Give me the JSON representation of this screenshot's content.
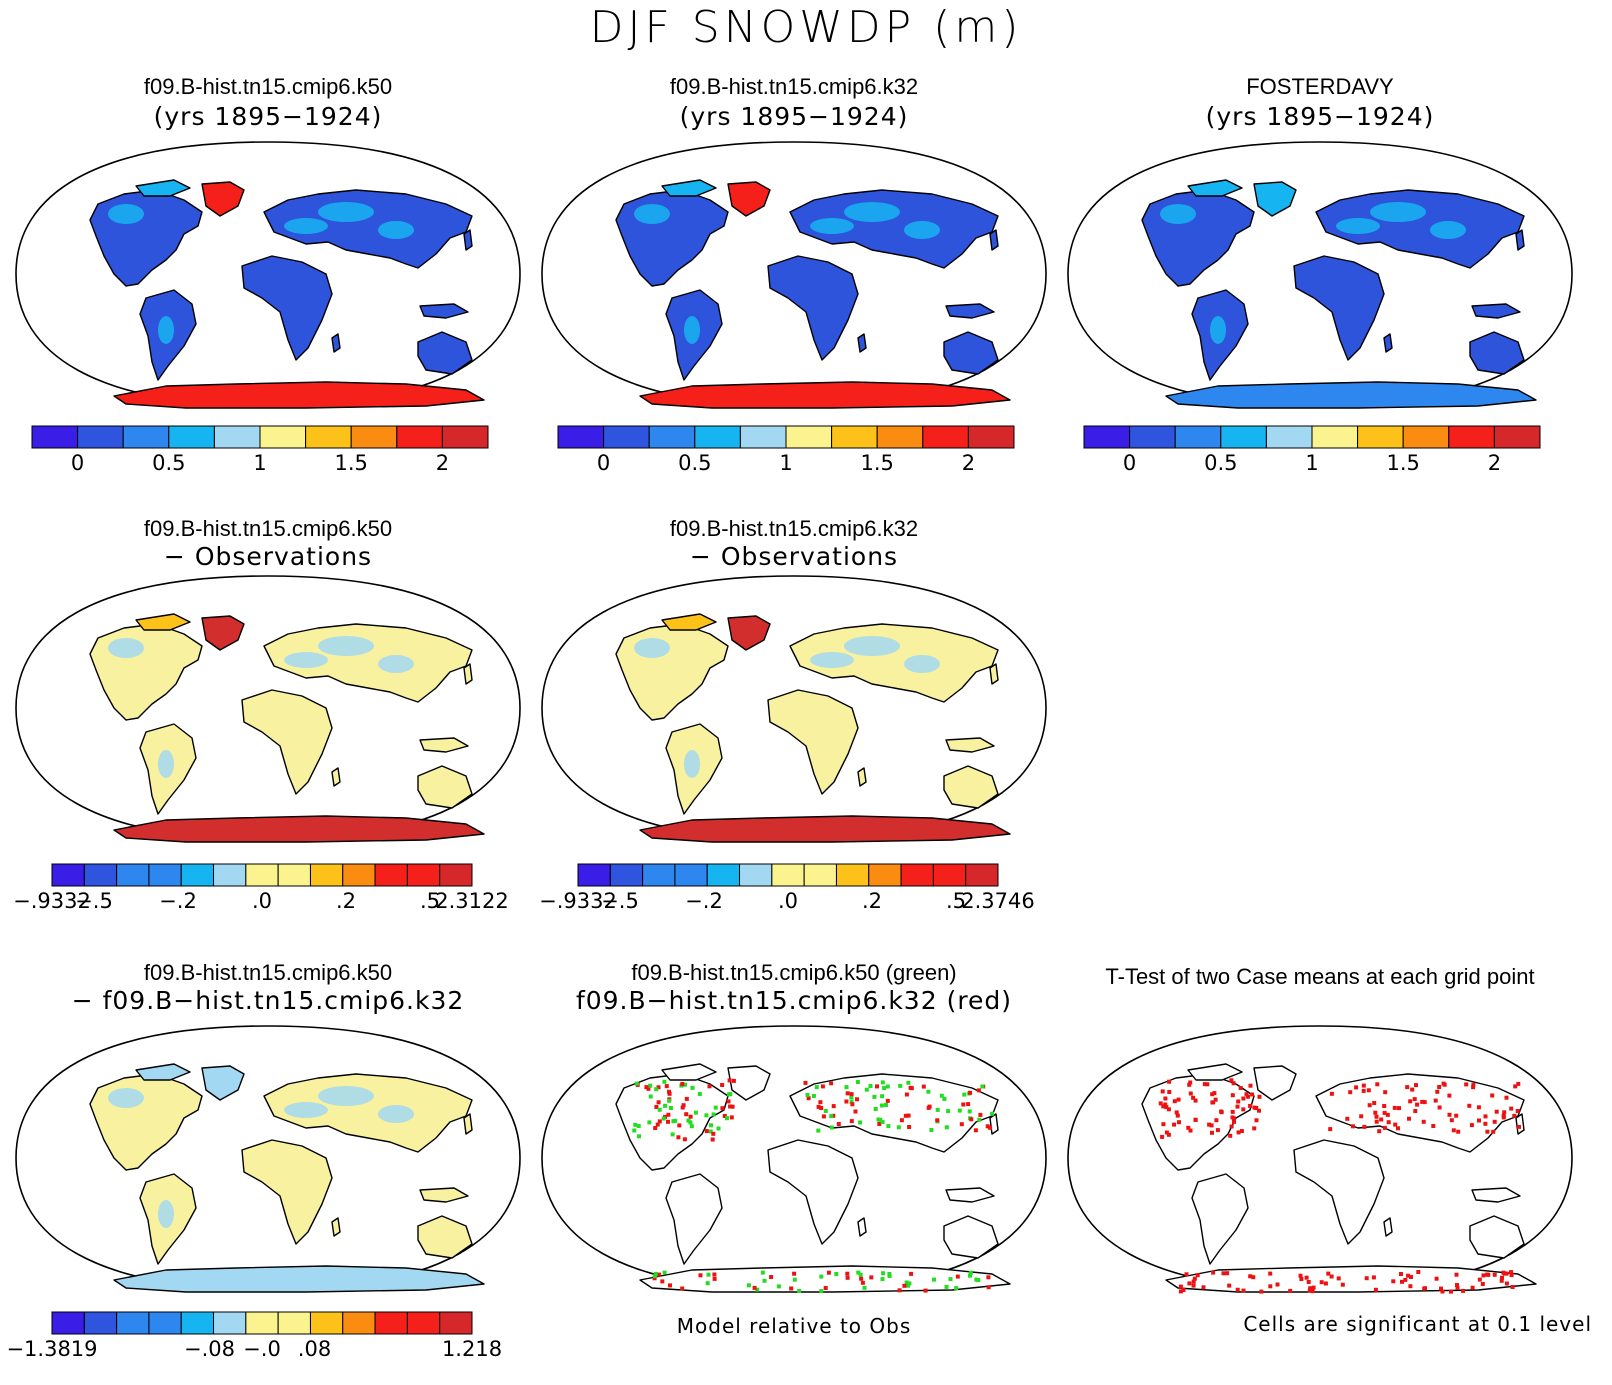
{
  "main_title": "DJF SNOWDP (m)",
  "colors": {
    "snow_depth_scale": [
      "#3a1de6",
      "#2f55e0",
      "#2e86ef",
      "#16b4f1",
      "#a3d8f2",
      "#fbf38e",
      "#fcc21a",
      "#fb8c12",
      "#f5201a",
      "#d6282b"
    ],
    "land_blue": "#2f54dc",
    "land_yellow": "#f8f2a0",
    "land_red": "#d32e2e",
    "significance_green": "#22dd22",
    "significance_red": "#ee1111"
  },
  "panels": [
    {
      "id": "k50-mean",
      "title1": "f09.B-hist.tn15.cmip6.k50",
      "title2": "(yrs 1895−1924)",
      "fill": "snow-model",
      "colorbar": {
        "n": 10,
        "labels": [
          "0",
          "0.5",
          "1",
          "1.5",
          "2"
        ],
        "label_style": "interior"
      }
    },
    {
      "id": "k32-mean",
      "title1": "f09.B-hist.tn15.cmip6.k32",
      "title2": "(yrs 1895−1924)",
      "fill": "snow-model",
      "colorbar": {
        "n": 10,
        "labels": [
          "0",
          "0.5",
          "1",
          "1.5",
          "2"
        ],
        "label_style": "interior"
      }
    },
    {
      "id": "obs-mean",
      "title1": "FOSTERDAVY",
      "title2": "(yrs 1895−1924)",
      "fill": "snow-obs",
      "colorbar": {
        "n": 10,
        "labels": [
          "0",
          "0.5",
          "1",
          "1.5",
          "2"
        ],
        "label_style": "interior"
      }
    },
    {
      "id": "k50-minus-obs",
      "title1": "f09.B-hist.tn15.cmip6.k50",
      "title2": "− Observations",
      "fill": "diff-obs",
      "colorbar": {
        "n": 13,
        "labels": [
          "−.9332",
          "−.5",
          "",
          "−.2",
          "",
          ".0",
          "",
          ".2",
          "",
          ".5",
          "2.3122"
        ],
        "label_style": "edges"
      }
    },
    {
      "id": "k32-minus-obs",
      "title1": "f09.B-hist.tn15.cmip6.k32",
      "title2": "− Observations",
      "fill": "diff-obs",
      "colorbar": {
        "n": 13,
        "labels": [
          "−.9332",
          "−.5",
          "",
          "−.2",
          "",
          ".0",
          "",
          ".2",
          "",
          ".5",
          "2.3746"
        ],
        "label_style": "edges"
      }
    },
    {
      "id": "k50-minus-k32",
      "title1": "f09.B-hist.tn15.cmip6.k50",
      "title2": "− f09.B−hist.tn15.cmip6.k32",
      "fill": "diff-model",
      "colorbar": {
        "n": 13,
        "labels": [
          "−1.3819",
          "",
          "",
          "−.08",
          "−.0",
          ".08",
          "",
          "",
          "1.218"
        ],
        "label_style": "edges"
      }
    },
    {
      "id": "relative-to-obs",
      "title1": "f09.B-hist.tn15.cmip6.k50 (green)",
      "title2": "f09.B−hist.tn15.cmip6.k32 (red)",
      "fill": "relative",
      "footnote": "Model relative to Obs"
    },
    {
      "id": "ttest",
      "title1": "T-Test of two Case means at each grid point",
      "title2": "",
      "fill": "ttest",
      "footnote": "Cells are significant at 0.1 level"
    }
  ]
}
